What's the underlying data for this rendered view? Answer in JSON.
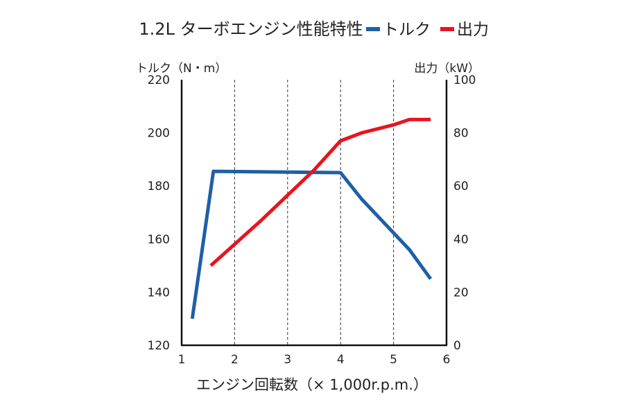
{
  "chart_data": {
    "type": "line",
    "title": "1.2L ターボエンジン性能特性",
    "xlabel": "エンジン回転数（× 1,000r.p.m.）",
    "ylabel_left": "トルク（N・m）",
    "ylabel_right": "出力（kW）",
    "x_ticks": [
      "1",
      "2",
      "3",
      "4",
      "5",
      "6"
    ],
    "y_left_ticks": [
      "120",
      "140",
      "160",
      "180",
      "200",
      "220"
    ],
    "y_right_ticks": [
      "0",
      "20",
      "40",
      "60",
      "80",
      "100"
    ],
    "xlim": [
      1,
      6
    ],
    "ylim_left": [
      120,
      220
    ],
    "ylim_right": [
      0,
      100
    ],
    "grid_x": [
      2,
      3,
      4,
      5
    ],
    "legend_position": "top-right",
    "series": [
      {
        "name": "トルク",
        "axis": "left",
        "color": "#1f5fa6",
        "points": [
          [
            1.2,
            130
          ],
          [
            1.6,
            185.5
          ],
          [
            4.0,
            185
          ],
          [
            4.4,
            175
          ],
          [
            5.3,
            156
          ],
          [
            5.7,
            145
          ]
        ]
      },
      {
        "name": "出力",
        "axis": "right",
        "color": "#e8141e",
        "points": [
          [
            1.55,
            30
          ],
          [
            2.5,
            47
          ],
          [
            3.5,
            66
          ],
          [
            4.0,
            77
          ],
          [
            4.4,
            80
          ],
          [
            5.0,
            83
          ],
          [
            5.3,
            85
          ],
          [
            5.7,
            85
          ]
        ]
      }
    ]
  }
}
